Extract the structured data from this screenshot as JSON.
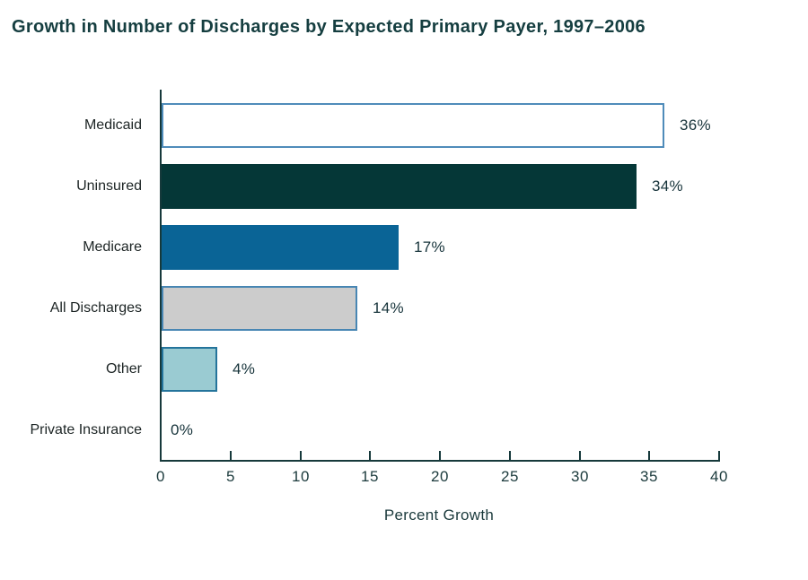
{
  "title": "Growth in Number of Discharges by Expected Primary Payer, 1997–2006",
  "chart_data": {
    "type": "bar",
    "orientation": "horizontal",
    "title": "Growth in Number of Discharges by Expected Primary Payer, 1997–2006",
    "categories": [
      "Medicaid",
      "Uninsured",
      "Medicare",
      "All Discharges",
      "Other",
      "Private Insurance"
    ],
    "values": [
      36,
      34,
      17,
      14,
      4,
      0
    ],
    "data_labels": [
      "36%",
      "34%",
      "17%",
      "14%",
      "4%",
      "0%"
    ],
    "xlabel": "Percent Growth",
    "xlim": [
      0,
      40
    ],
    "xticks": [
      0,
      5,
      10,
      15,
      20,
      25,
      30,
      35,
      40
    ],
    "grid": false,
    "legend": false,
    "bar_styles": [
      {
        "fill": "#ffffff",
        "border": "#4f8cba"
      },
      {
        "fill": "#053737",
        "border": "#053737"
      },
      {
        "fill": "#0a6496",
        "border": "#0a6496"
      },
      {
        "fill": "#cccccc",
        "border": "#4886b3"
      },
      {
        "fill": "#9acbd2",
        "border": "#24749b"
      },
      {
        "fill": "none",
        "border": "none"
      }
    ]
  },
  "colors": {
    "background": "#ffffff",
    "title_text": "#153e40",
    "axis": "#16393b",
    "tick_text": "#1b3a3c",
    "category_text": "#1c2424",
    "value_text": "#16333a"
  }
}
